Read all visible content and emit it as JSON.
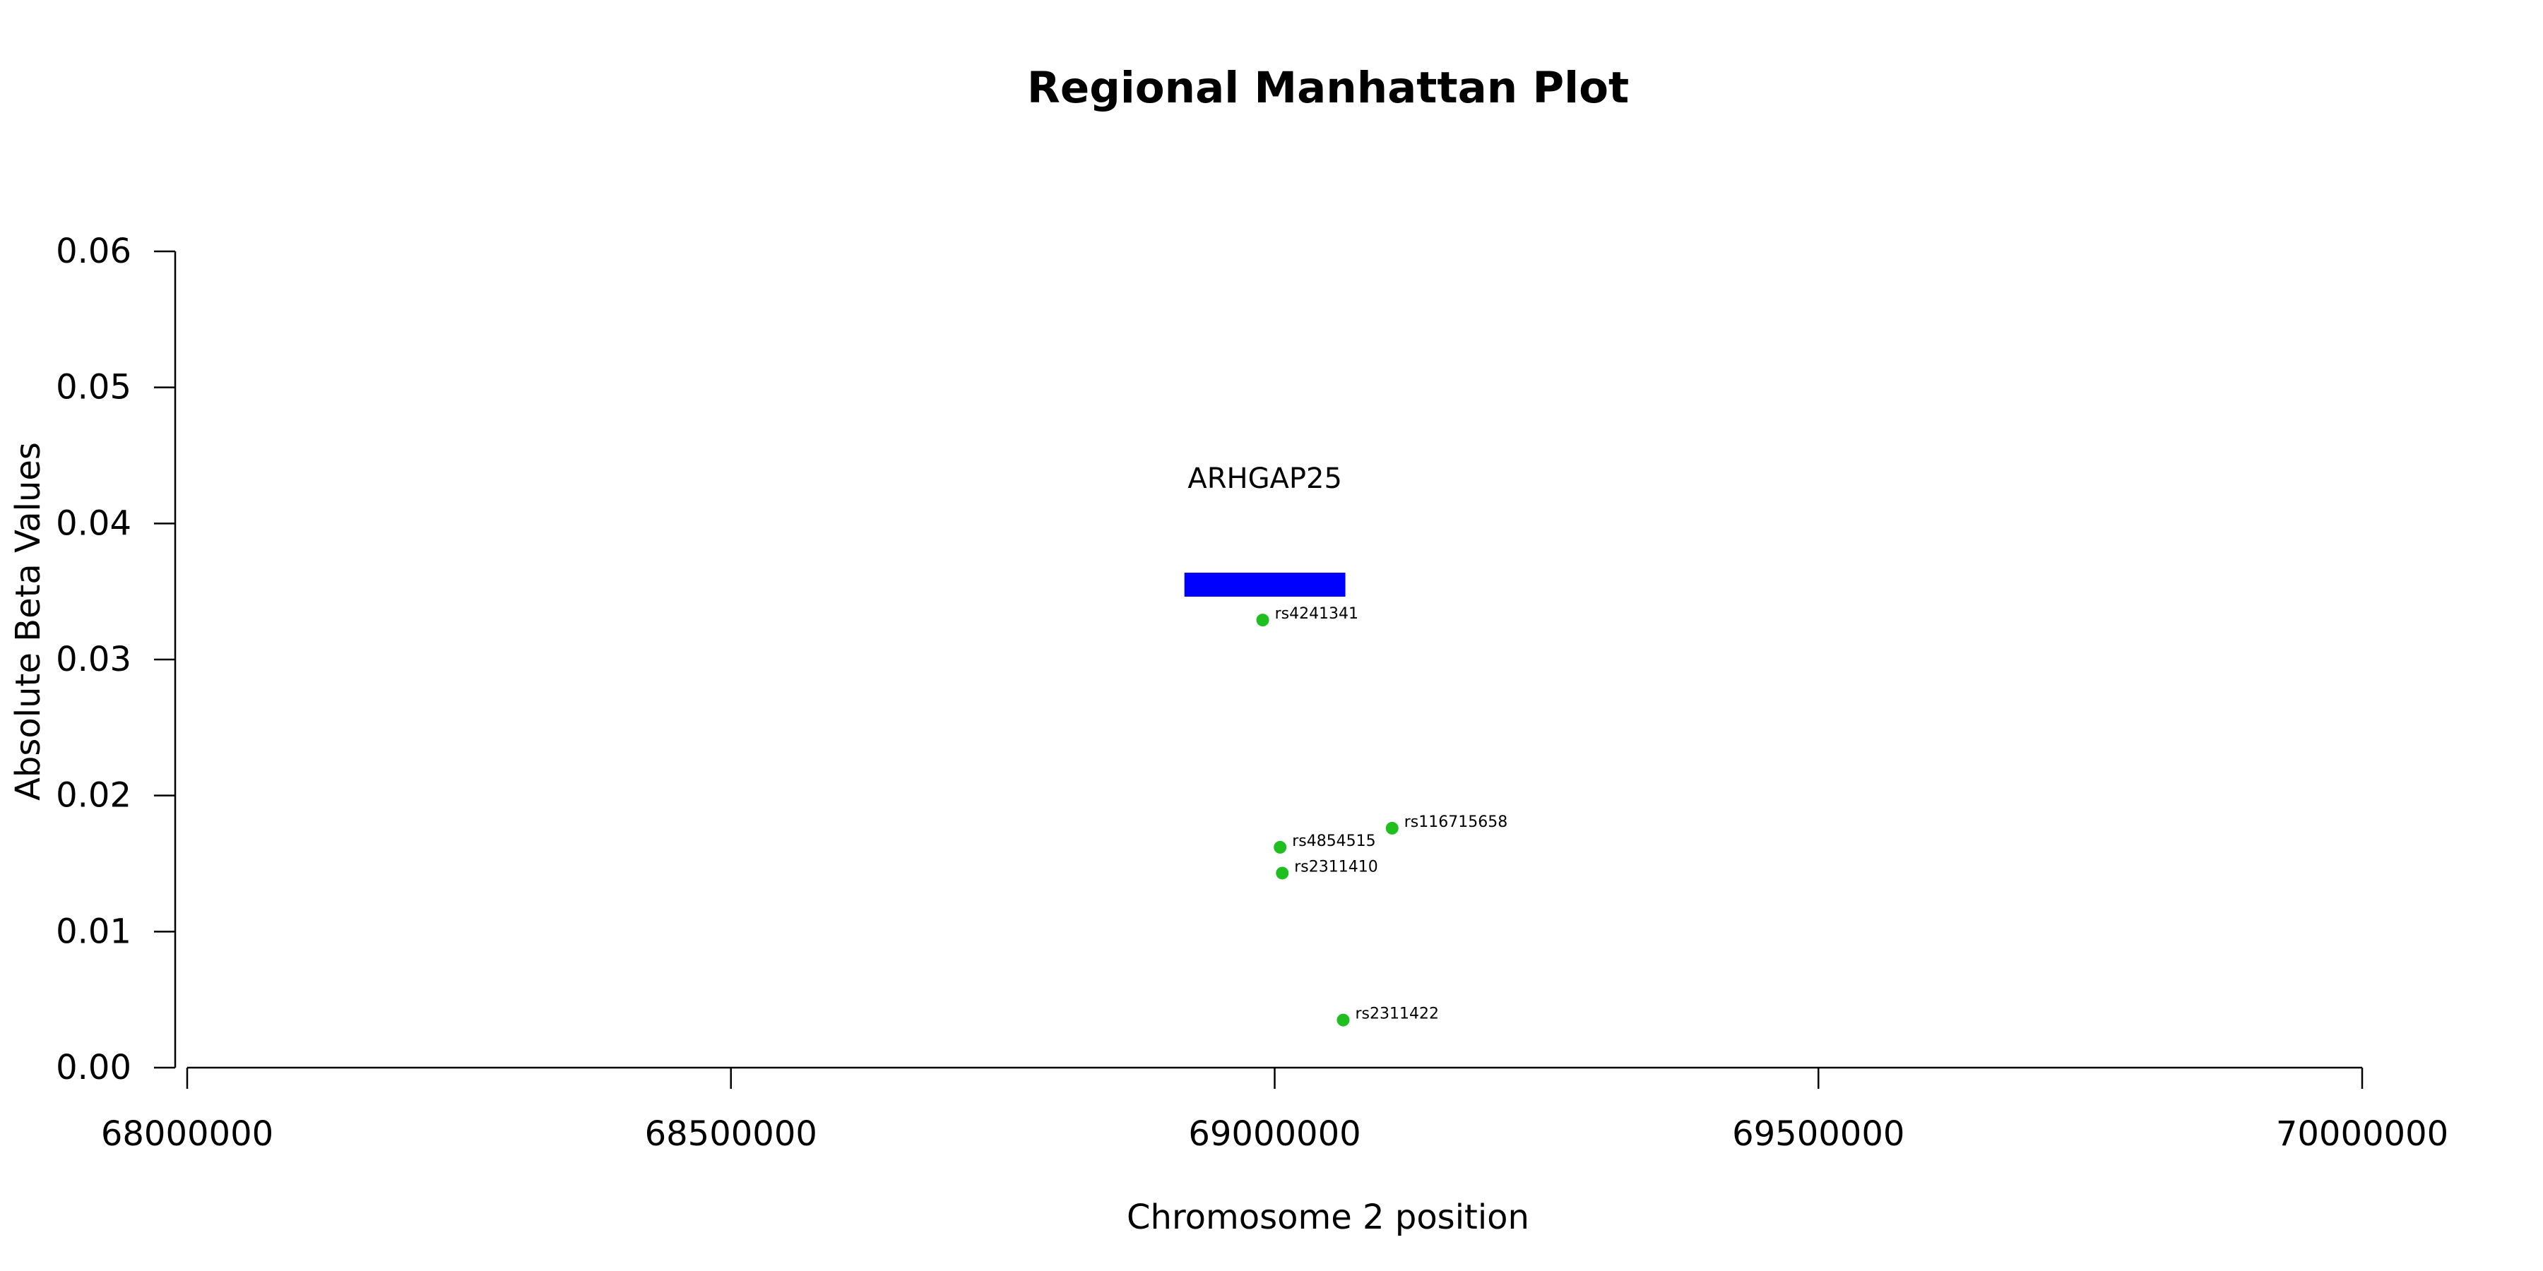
{
  "chart_data": {
    "type": "scatter",
    "title": "Regional Manhattan Plot",
    "xlabel": "Chromosome 2 position",
    "ylabel": "Absolute Beta Values",
    "xlim": [
      68000000,
      70000000
    ],
    "ylim": [
      0,
      0.06
    ],
    "x_ticks": [
      68000000,
      68500000,
      69000000,
      69500000,
      70000000
    ],
    "y_ticks": [
      0.0,
      0.01,
      0.02,
      0.03,
      0.04,
      0.05,
      0.06
    ],
    "x_tick_labels": [
      "68000000",
      "68500000",
      "69000000",
      "69500000",
      "70000000"
    ],
    "y_tick_labels": [
      "0.00",
      "0.01",
      "0.02",
      "0.03",
      "0.04",
      "0.05",
      "0.06"
    ],
    "point_color": "#1fbf1f",
    "gene_color": "#0000ff",
    "grid": false,
    "gene": {
      "name": "ARHGAP25",
      "start": 68917000,
      "end": 69065000,
      "y": 0.0355
    },
    "points": [
      {
        "label": "rs4241341",
        "x": 68989000,
        "y": 0.0329
      },
      {
        "label": "rs116715658",
        "x": 69108000,
        "y": 0.0176
      },
      {
        "label": "rs4854515",
        "x": 69005000,
        "y": 0.0162
      },
      {
        "label": "rs2311410",
        "x": 69007000,
        "y": 0.0143
      },
      {
        "label": "rs2311422",
        "x": 69063000,
        "y": 0.0035
      }
    ]
  }
}
